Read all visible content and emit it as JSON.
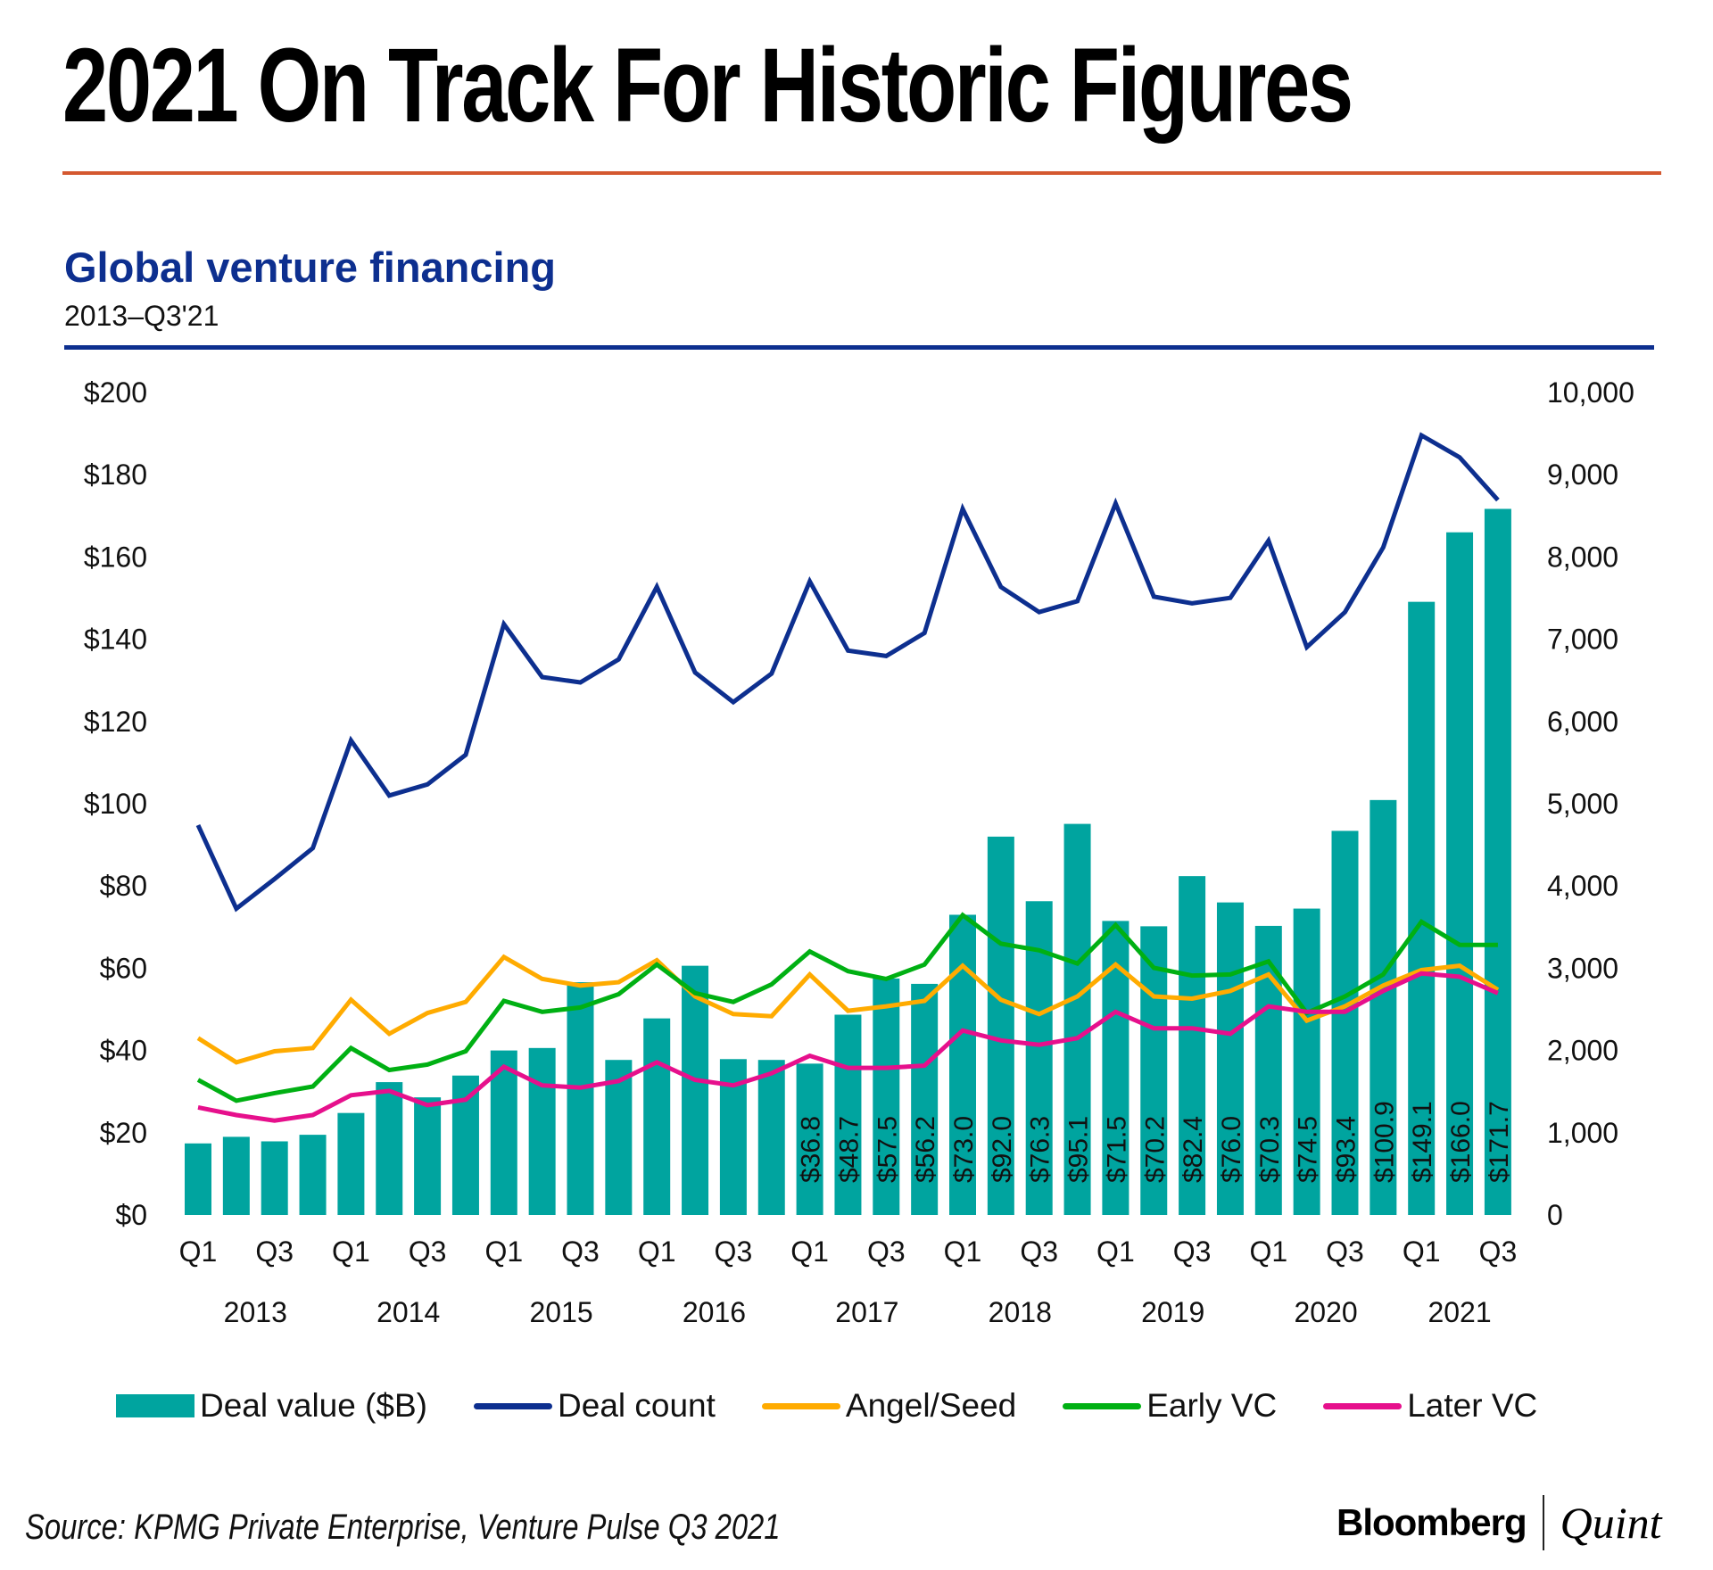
{
  "header": {
    "headline": "2021 On Track For Historic Figures"
  },
  "chart_data": {
    "type": "bar",
    "title": "Global venture financing",
    "subtitle": "2013–Q3'21",
    "categories": [
      "Q1'13",
      "Q2'13",
      "Q3'13",
      "Q4'13",
      "Q1'14",
      "Q2'14",
      "Q3'14",
      "Q4'14",
      "Q1'15",
      "Q2'15",
      "Q3'15",
      "Q4'15",
      "Q1'16",
      "Q2'16",
      "Q3'16",
      "Q4'16",
      "Q1'17",
      "Q2'17",
      "Q3'17",
      "Q4'17",
      "Q1'18",
      "Q2'18",
      "Q3'18",
      "Q4'18",
      "Q1'19",
      "Q2'19",
      "Q3'19",
      "Q4'19",
      "Q1'20",
      "Q2'20",
      "Q3'20",
      "Q4'20",
      "Q1'21",
      "Q2'21",
      "Q3'21"
    ],
    "x_tick_labels": [
      "Q1",
      "Q3",
      "Q1",
      "Q3",
      "Q1",
      "Q3",
      "Q1",
      "Q3",
      "Q1",
      "Q3",
      "Q1",
      "Q3",
      "Q1",
      "Q3",
      "Q1",
      "Q3",
      "Q1",
      "Q3"
    ],
    "year_labels": [
      "2013",
      "2014",
      "2015",
      "2016",
      "2017",
      "2018",
      "2019",
      "2020",
      "2021"
    ],
    "left_axis": {
      "label": "Deal value ($B)",
      "ticks": [
        "$0",
        "$20",
        "$40",
        "$60",
        "$80",
        "$100",
        "$120",
        "$140",
        "$160",
        "$180",
        "$200"
      ],
      "range": [
        0,
        200
      ]
    },
    "right_axis": {
      "label": "Deal count",
      "ticks": [
        "0",
        "1,000",
        "2,000",
        "3,000",
        "4,000",
        "5,000",
        "6,000",
        "7,000",
        "8,000",
        "9,000",
        "10,000"
      ],
      "range": [
        0,
        10000
      ]
    },
    "bars": {
      "name": "Deal value ($B)",
      "color": "#00a49f",
      "values": [
        17.4,
        19.0,
        17.9,
        19.5,
        24.8,
        32.3,
        28.6,
        33.9,
        40.0,
        40.6,
        56.6,
        37.7,
        47.8,
        60.6,
        37.9,
        37.7,
        36.8,
        48.7,
        57.5,
        56.2,
        73.0,
        92.0,
        76.3,
        95.1,
        71.5,
        70.2,
        82.4,
        76.0,
        70.3,
        74.5,
        93.4,
        100.9,
        149.1,
        166.0,
        171.7
      ],
      "data_labels": [
        "",
        "",
        "",
        "",
        "",
        "",
        "",
        "",
        "",
        "",
        "",
        "",
        "",
        "",
        "",
        "",
        "$36.8",
        "$48.7",
        "$57.5",
        "$56.2",
        "$73.0",
        "$92.0",
        "$76.3",
        "$95.1",
        "$71.5",
        "$70.2",
        "$82.4",
        "$76.0",
        "$70.3",
        "$74.5",
        "$93.4",
        "$100.9",
        "$149.1",
        "$166.0",
        "$171.7"
      ]
    },
    "series": [
      {
        "name": "Deal count",
        "axis": "right",
        "color": "#0d2f8f",
        "values": [
          4740,
          3725,
          4085,
          4460,
          5770,
          5100,
          5235,
          5595,
          7183,
          6540,
          6475,
          6755,
          7637,
          6595,
          6235,
          6582,
          7704,
          6862,
          6796,
          7076,
          8585,
          7637,
          7330,
          7463,
          8652,
          7517,
          7437,
          7503,
          8198,
          6903,
          7330,
          8117,
          9479,
          9212,
          8692
        ]
      },
      {
        "name": "Angel/Seed",
        "axis": "right",
        "color": "#ffab00",
        "values": [
          2150,
          1856,
          1990,
          2029,
          2617,
          2203,
          2456,
          2590,
          3137,
          2870,
          2790,
          2830,
          3097,
          2657,
          2443,
          2417,
          2924,
          2483,
          2537,
          2603,
          3030,
          2617,
          2443,
          2657,
          3044,
          2657,
          2630,
          2724,
          2924,
          2363,
          2537,
          2790,
          2977,
          3030,
          2737
        ]
      },
      {
        "name": "Early VC",
        "axis": "right",
        "color": "#00b013",
        "values": [
          1642,
          1389,
          1482,
          1562,
          2029,
          1762,
          1829,
          1990,
          2603,
          2470,
          2523,
          2684,
          3044,
          2697,
          2590,
          2804,
          3204,
          2964,
          2870,
          3044,
          3645,
          3298,
          3218,
          3057,
          3525,
          3004,
          2911,
          2924,
          3084,
          2456,
          2657,
          2924,
          3565,
          3284,
          3284
        ]
      },
      {
        "name": "Later VC",
        "axis": "right",
        "color": "#e6108c",
        "values": [
          1308,
          1215,
          1148,
          1215,
          1455,
          1509,
          1335,
          1402,
          1802,
          1576,
          1549,
          1629,
          1856,
          1642,
          1576,
          1722,
          1936,
          1789,
          1789,
          1816,
          2243,
          2123,
          2069,
          2150,
          2470,
          2270,
          2270,
          2203,
          2537,
          2470,
          2470,
          2724,
          2937,
          2897,
          2697
        ]
      }
    ],
    "legend": [
      "Deal value ($B)",
      "Deal count",
      "Angel/Seed",
      "Early VC",
      "Later VC"
    ],
    "legend_position": "bottom",
    "grid": false
  },
  "footer": {
    "source": "Source: KPMG Private Enterprise, Venture Pulse Q3 2021",
    "brand_left": "Bloomberg",
    "brand_right": "Quint"
  }
}
